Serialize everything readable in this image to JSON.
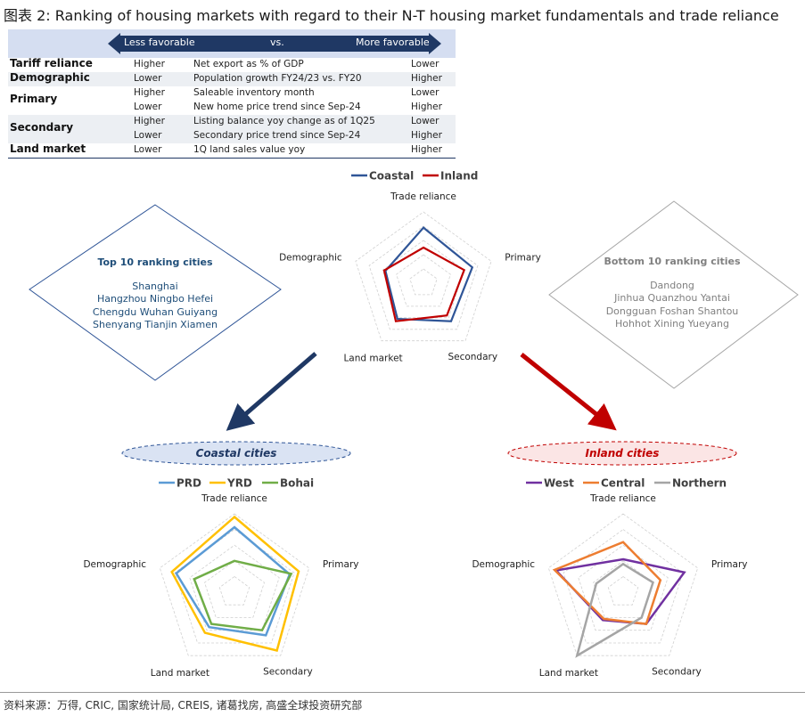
{
  "title": "图表 2: Ranking of housing markets with regard to their N-T housing market fundamentals and trade reliance",
  "table": {
    "left_label": "Less favorable",
    "mid_label": "vs.",
    "right_label": "More favorable",
    "rows": [
      {
        "category": "Tariff reliance",
        "left": "Higher",
        "metric": "Net export as % of GDP",
        "right": "Lower",
        "shade": false
      },
      {
        "category": "Demographic",
        "left": "Lower",
        "metric": "Population growth FY24/23 vs. FY20",
        "right": "Higher",
        "shade": true
      },
      {
        "category": "Primary",
        "left": "Higher",
        "metric": "Saleable inventory month",
        "right": "Lower",
        "shade": false
      },
      {
        "category": "",
        "left": "Lower",
        "metric": "New home price trend since Sep-24",
        "right": "Higher",
        "shade": false
      },
      {
        "category": "Secondary",
        "left": "Higher",
        "metric": " Listing balance yoy change as of 1Q25",
        "right": "Lower",
        "shade": true
      },
      {
        "category": "",
        "left": "Lower",
        "metric": "Secondary price trend since Sep-24",
        "right": "Higher",
        "shade": true
      },
      {
        "category": "Land market",
        "left": "Lower",
        "metric": "1Q land sales value yoy",
        "right": "Higher",
        "shade": false
      }
    ]
  },
  "top_box": {
    "heading": "Top 10 ranking cities",
    "lines": [
      "Shanghai",
      "Hangzhou  Ningbo  Hefei",
      "Chengdu  Wuhan  Guiyang",
      "Shenyang  Tianjin  Xiamen"
    ],
    "color": "#1f4e79"
  },
  "bottom_box": {
    "heading": "Bottom 10 ranking cities",
    "lines": [
      "Dandong",
      "Jinhua  Quanzhou  Yantai",
      "Dongguan  Foshan  Shantou",
      "Hohhot  Xining  Yueyang"
    ],
    "color": "#808080"
  },
  "pills": {
    "coastal": "Coastal cities",
    "inland": "Inland cities"
  },
  "chart_data": [
    {
      "type": "radar",
      "axes": [
        "Trade reliance",
        "Primary",
        "Secondary",
        "Land market",
        "Demographic"
      ],
      "rmax": 1.0,
      "rings": 5,
      "series": [
        {
          "name": "Coastal",
          "color": "#2f5597",
          "values": [
            0.78,
            0.72,
            0.66,
            0.62,
            0.56
          ]
        },
        {
          "name": "Inland",
          "color": "#c00000",
          "values": [
            0.5,
            0.6,
            0.56,
            0.66,
            0.58
          ]
        }
      ]
    },
    {
      "type": "radar",
      "axes": [
        "Trade reliance",
        "Primary",
        "Secondary",
        "Land market",
        "Demographic"
      ],
      "rmax": 1.0,
      "rings": 5,
      "series": [
        {
          "name": "PRD",
          "color": "#5b9bd5",
          "values": [
            0.83,
            0.74,
            0.68,
            0.55,
            0.78
          ]
        },
        {
          "name": "YRD",
          "color": "#ffc000",
          "values": [
            0.96,
            0.86,
            0.92,
            0.64,
            0.84
          ]
        },
        {
          "name": "Bohai",
          "color": "#70ad47",
          "values": [
            0.4,
            0.76,
            0.6,
            0.5,
            0.54
          ]
        }
      ]
    },
    {
      "type": "radar",
      "axes": [
        "Trade reliance",
        "Primary",
        "Secondary",
        "Land market",
        "Demographic"
      ],
      "rmax": 1.0,
      "rings": 5,
      "series": [
        {
          "name": "West",
          "color": "#7030a0",
          "values": [
            0.42,
            0.82,
            0.5,
            0.44,
            0.9
          ]
        },
        {
          "name": "Central",
          "color": "#ed7d31",
          "values": [
            0.64,
            0.5,
            0.5,
            0.42,
            0.92
          ]
        },
        {
          "name": "Northern",
          "color": "#a5a5a5",
          "values": [
            0.36,
            0.4,
            0.4,
            1.0,
            0.36
          ]
        }
      ]
    }
  ],
  "source": "资料来源：万得, CRIC, 国家统计局, CREIS, 诸葛找房, 高盛全球投资研究部"
}
